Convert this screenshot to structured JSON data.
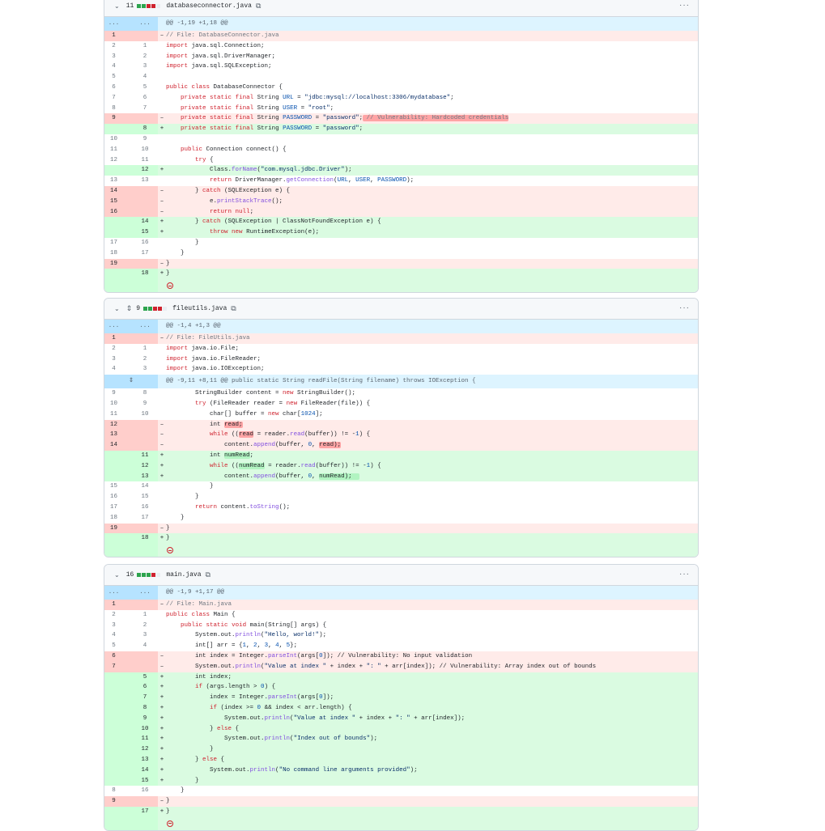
{
  "colors": {
    "added": "#2da44e",
    "removed": "#cf222e",
    "neutral": "#eaeef2"
  },
  "icons": {
    "collapse": "chevron-down-icon",
    "copy": "copy-icon",
    "more": "kebab-horizontal-icon",
    "expand": "unfold-icon",
    "no_newline": "no-entry-icon"
  },
  "files": [
    {
      "name": "databaseconnector.java",
      "changes": "11",
      "stat": [
        "add",
        "add",
        "del",
        "del",
        "neutral"
      ],
      "expand": false,
      "rows": [
        {
          "t": "hunk",
          "o": "...",
          "n": "...",
          "c": "@@ -1,19 +1,18 @@"
        },
        {
          "t": "del",
          "o": "1",
          "c": "// File: DatabaseConnector.java"
        },
        {
          "t": "ctx",
          "o": "2",
          "n": "1",
          "c": "import java.sql.Connection;"
        },
        {
          "t": "ctx",
          "o": "3",
          "n": "2",
          "c": "import java.sql.DriverManager;"
        },
        {
          "t": "ctx",
          "o": "4",
          "n": "3",
          "c": "import java.sql.SQLException;"
        },
        {
          "t": "ctx",
          "o": "5",
          "n": "4",
          "c": ""
        },
        {
          "t": "ctx",
          "o": "6",
          "n": "5",
          "c": "public class DatabaseConnector {"
        },
        {
          "t": "ctx",
          "o": "7",
          "n": "6",
          "c": "    private static final String URL = \"jdbc:mysql://localhost:3306/mydatabase\";"
        },
        {
          "t": "ctx",
          "o": "8",
          "n": "7",
          "c": "    private static final String USER = \"root\";"
        },
        {
          "t": "del",
          "o": "9",
          "c": "    private static final String PASSWORD = \"password\"; // Vulnerability: Hardcoded credentials",
          "hl": " // Vulnerability: Hardcoded credentials"
        },
        {
          "t": "add",
          "n": "8",
          "c": "    private static final String PASSWORD = \"password\";"
        },
        {
          "t": "ctx",
          "o": "10",
          "n": "9",
          "c": ""
        },
        {
          "t": "ctx",
          "o": "11",
          "n": "10",
          "c": "    public Connection connect() {"
        },
        {
          "t": "ctx",
          "o": "12",
          "n": "11",
          "c": "        try {"
        },
        {
          "t": "add",
          "n": "12",
          "c": "            Class.forName(\"com.mysql.jdbc.Driver\");"
        },
        {
          "t": "ctx",
          "o": "13",
          "n": "13",
          "c": "            return DriverManager.getConnection(URL, USER, PASSWORD);"
        },
        {
          "t": "del",
          "o": "14",
          "c": "        } catch (SQLException e) {"
        },
        {
          "t": "del",
          "o": "15",
          "c": "            e.printStackTrace();"
        },
        {
          "t": "del",
          "o": "16",
          "c": "            return null;"
        },
        {
          "t": "add",
          "n": "14",
          "c": "        } catch (SQLException | ClassNotFoundException e) {"
        },
        {
          "t": "add",
          "n": "15",
          "c": "            throw new RuntimeException(e);"
        },
        {
          "t": "ctx",
          "o": "17",
          "n": "16",
          "c": "        }"
        },
        {
          "t": "ctx",
          "o": "18",
          "n": "17",
          "c": "    }"
        },
        {
          "t": "del",
          "o": "19",
          "c": "}"
        },
        {
          "t": "add",
          "n": "18",
          "c": "}"
        },
        {
          "t": "end"
        }
      ]
    },
    {
      "name": "fileutils.java",
      "changes": "9",
      "stat": [
        "add",
        "add",
        "del",
        "del",
        "neutral"
      ],
      "expand": true,
      "rows": [
        {
          "t": "hunk",
          "o": "...",
          "n": "...",
          "c": "@@ -1,4 +1,3 @@"
        },
        {
          "t": "del",
          "o": "1",
          "c": "// File: FileUtils.java"
        },
        {
          "t": "ctx",
          "o": "2",
          "n": "1",
          "c": "import java.io.File;"
        },
        {
          "t": "ctx",
          "o": "3",
          "n": "2",
          "c": "import java.io.FileReader;"
        },
        {
          "t": "ctx",
          "o": "4",
          "n": "3",
          "c": "import java.io.IOException;"
        },
        {
          "t": "hunk",
          "expand": true,
          "c": "@@ -9,11 +8,11 @@ public static String readFile(String filename) throws IOException {"
        },
        {
          "t": "ctx",
          "o": "9",
          "n": "8",
          "c": "        StringBuilder content = new StringBuilder();"
        },
        {
          "t": "ctx",
          "o": "10",
          "n": "9",
          "c": "        try (FileReader reader = new FileReader(file)) {"
        },
        {
          "t": "ctx",
          "o": "11",
          "n": "10",
          "c": "            char[] buffer = new char[1024];"
        },
        {
          "t": "del",
          "o": "12",
          "c": "            int read;",
          "hl": "read;"
        },
        {
          "t": "del",
          "o": "13",
          "c": "            while ((read = reader.read(buffer)) != -1) {",
          "hl": "read"
        },
        {
          "t": "del",
          "o": "14",
          "c": "                content.append(buffer, 0, read);",
          "hl": "read);"
        },
        {
          "t": "add",
          "n": "11",
          "c": "            int numRead;",
          "hl": "numRead"
        },
        {
          "t": "add",
          "n": "12",
          "c": "            while ((numRead = reader.read(buffer)) != -1) {",
          "hl": "numRead"
        },
        {
          "t": "add",
          "n": "13",
          "c": "                content.append(buffer, 0, numRead);  ",
          "hl": "numRead);  "
        },
        {
          "t": "ctx",
          "o": "15",
          "n": "14",
          "c": "            }"
        },
        {
          "t": "ctx",
          "o": "16",
          "n": "15",
          "c": "        }"
        },
        {
          "t": "ctx",
          "o": "17",
          "n": "16",
          "c": "        return content.toString();"
        },
        {
          "t": "ctx",
          "o": "18",
          "n": "17",
          "c": "    }"
        },
        {
          "t": "del",
          "o": "19",
          "c": "}"
        },
        {
          "t": "add",
          "n": "18",
          "c": "}"
        },
        {
          "t": "end"
        }
      ]
    },
    {
      "name": "main.java",
      "changes": "16",
      "stat": [
        "add",
        "add",
        "add",
        "del",
        "neutral"
      ],
      "expand": false,
      "rows": [
        {
          "t": "hunk",
          "o": "...",
          "n": "...",
          "c": "@@ -1,9 +1,17 @@"
        },
        {
          "t": "del",
          "o": "1",
          "c": "// File: Main.java"
        },
        {
          "t": "ctx",
          "o": "2",
          "n": "1",
          "c": "public class Main {"
        },
        {
          "t": "ctx",
          "o": "3",
          "n": "2",
          "c": "    public static void main(String[] args) {"
        },
        {
          "t": "ctx",
          "o": "4",
          "n": "3",
          "c": "        System.out.println(\"Hello, world!\");"
        },
        {
          "t": "ctx",
          "o": "5",
          "n": "4",
          "c": "        int[] arr = {1, 2, 3, 4, 5};"
        },
        {
          "t": "del",
          "o": "6",
          "c": "        int index = Integer.parseInt(args[0]); // Vulnerability: No input validation"
        },
        {
          "t": "del",
          "o": "7",
          "c": "        System.out.println(\"Value at index \" + index + \": \" + arr[index]); // Vulnerability: Array index out of bounds"
        },
        {
          "t": "add",
          "n": "5",
          "c": "        int index;"
        },
        {
          "t": "add",
          "n": "6",
          "c": "        if (args.length > 0) {"
        },
        {
          "t": "add",
          "n": "7",
          "c": "            index = Integer.parseInt(args[0]);"
        },
        {
          "t": "add",
          "n": "8",
          "c": "            if (index >= 0 && index < arr.length) {"
        },
        {
          "t": "add",
          "n": "9",
          "c": "                System.out.println(\"Value at index \" + index + \": \" + arr[index]);"
        },
        {
          "t": "add",
          "n": "10",
          "c": "            } else {"
        },
        {
          "t": "add",
          "n": "11",
          "c": "                System.out.println(\"Index out of bounds\");"
        },
        {
          "t": "add",
          "n": "12",
          "c": "            }"
        },
        {
          "t": "add",
          "n": "13",
          "c": "        } else {"
        },
        {
          "t": "add",
          "n": "14",
          "c": "            System.out.println(\"No command line arguments provided\");"
        },
        {
          "t": "add",
          "n": "15",
          "c": "        }"
        },
        {
          "t": "ctx",
          "o": "8",
          "n": "16",
          "c": "    }"
        },
        {
          "t": "del",
          "o": "9",
          "c": "}"
        },
        {
          "t": "add",
          "n": "17",
          "c": "}"
        },
        {
          "t": "end"
        }
      ]
    }
  ]
}
